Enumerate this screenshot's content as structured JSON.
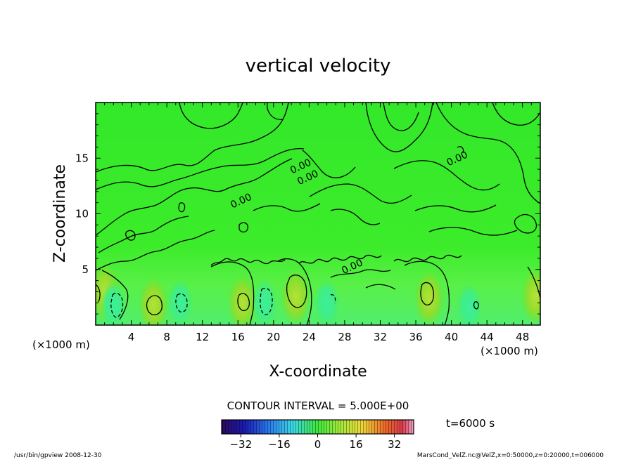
{
  "chart_data": {
    "type": "heatmap",
    "title": "vertical velocity",
    "xlabel": "X-coordinate",
    "ylabel": "Z-coordinate",
    "x_unit_left": "(×1000 m)",
    "x_unit_right": "(×1000 m)",
    "xlim": [
      0,
      50
    ],
    "ylim": [
      0,
      20
    ],
    "x_ticks": [
      4,
      8,
      12,
      16,
      20,
      24,
      28,
      32,
      36,
      40,
      44,
      48
    ],
    "y_ticks": [
      5,
      10,
      15
    ],
    "contour_labels": [
      {
        "text": "0.00",
        "x": 16.5,
        "y": 10.9
      },
      {
        "text": "0.00",
        "x": 23.2,
        "y": 14.0
      },
      {
        "text": "0.00",
        "x": 24.0,
        "y": 13.0
      },
      {
        "text": "0.00",
        "x": 40.8,
        "y": 14.7
      },
      {
        "text": "0.00",
        "x": 29.0,
        "y": 5.0
      }
    ],
    "contour_interval_text": "CONTOUR INTERVAL = 5.000E+00",
    "time_text": "t=6000 s",
    "colorbar": {
      "min": -40,
      "max": 40,
      "tick_values": [
        -32,
        -16,
        0,
        16,
        32
      ],
      "tick_labels": [
        "−32",
        "−16",
        "0",
        "16",
        "32"
      ]
    },
    "updraft_centers": [
      {
        "x": 1,
        "y": 3
      },
      {
        "x": 6.5,
        "y": 1.8
      },
      {
        "x": 16.5,
        "y": 2.0
      },
      {
        "x": 22.5,
        "y": 2.5
      },
      {
        "x": 37.5,
        "y": 2.4
      },
      {
        "x": 49.5,
        "y": 2.6
      }
    ],
    "downdraft_centers": [
      {
        "x": 2,
        "y": 1.8
      },
      {
        "x": 9.5,
        "y": 2.0
      },
      {
        "x": 19,
        "y": 2.0
      },
      {
        "x": 26,
        "y": 2.0
      },
      {
        "x": 42,
        "y": 1.6
      }
    ]
  },
  "footer": {
    "left": "/usr/bin/gpview   2008-12-30",
    "right": "MarsCond_VelZ.nc@VelZ,x=0:50000,z=0:20000,t=006000"
  }
}
